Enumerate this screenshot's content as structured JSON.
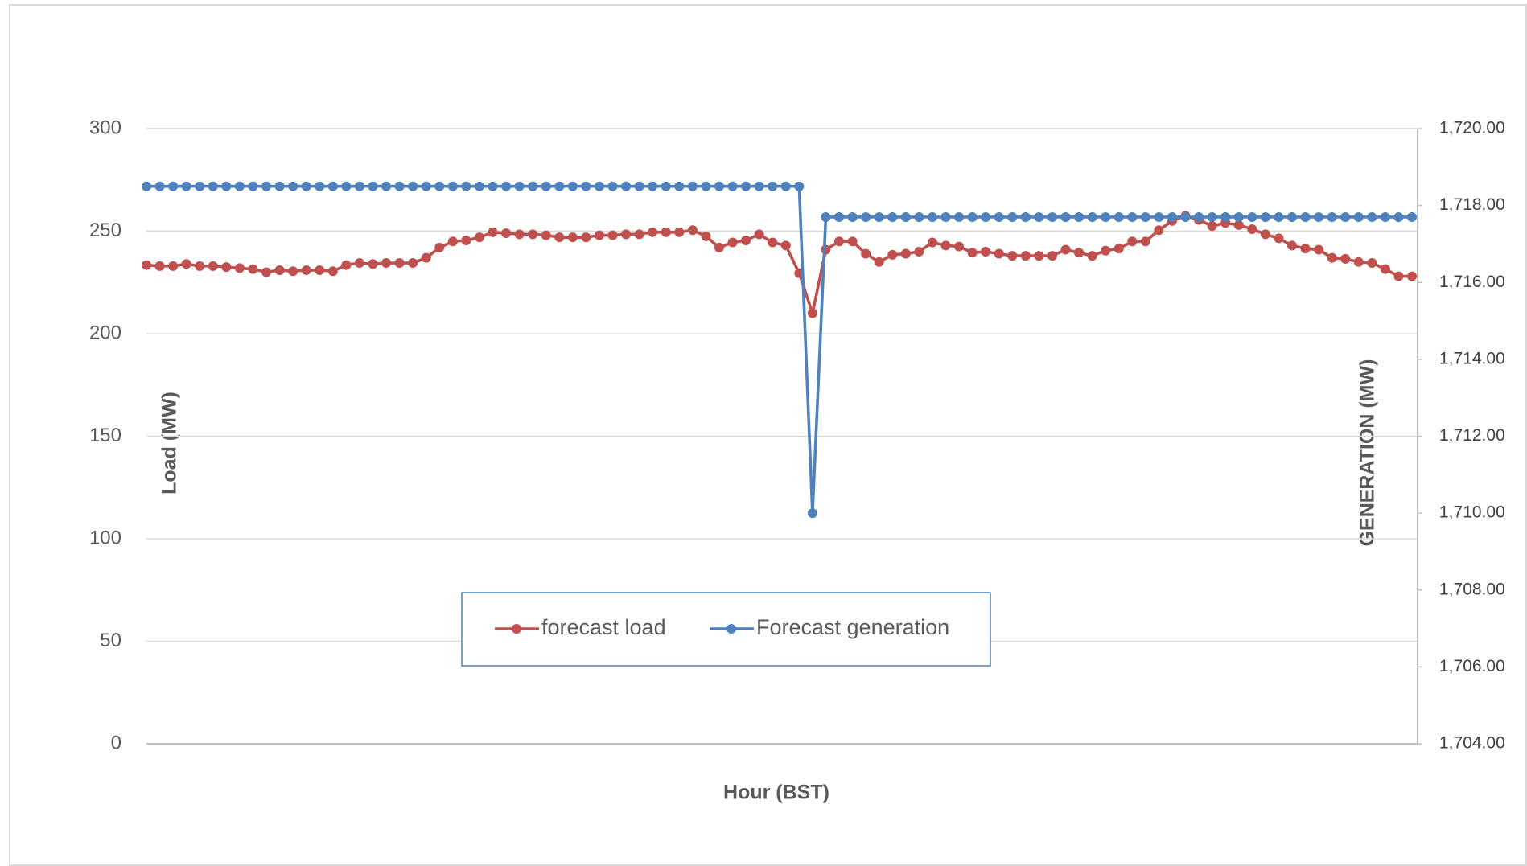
{
  "chart_data": {
    "type": "line",
    "x_label": "Hour (BST)",
    "y_label": "Load (MW)",
    "y2_label": "GENERATION (MW)",
    "categories": [
      null,
      null,
      null,
      null,
      null,
      null,
      null,
      null,
      null,
      null,
      null,
      null,
      null,
      null,
      null,
      null,
      null,
      null,
      null,
      null,
      null,
      null,
      null,
      null,
      null,
      null,
      null,
      null,
      null,
      null,
      null,
      null,
      null,
      null,
      null,
      null,
      null,
      null,
      null,
      null,
      null,
      null,
      null,
      null,
      null,
      null,
      null,
      null,
      null,
      null,
      null,
      null,
      null,
      null,
      null,
      null,
      null,
      null,
      null,
      null,
      null,
      null,
      null,
      null,
      null,
      null,
      null,
      null,
      null,
      null,
      null,
      null,
      null,
      null,
      null,
      null,
      null,
      null,
      null,
      null,
      null,
      null,
      null,
      null,
      null,
      null,
      null,
      null,
      null,
      null,
      null,
      null,
      null,
      null,
      null,
      null
    ],
    "series": [
      {
        "name": "forecast load",
        "color": "#c0504d",
        "axis": "y",
        "values": [
          233.5,
          233,
          233,
          234,
          233,
          233,
          232.5,
          232,
          231.5,
          230,
          231,
          230.5,
          231,
          231,
          230.5,
          233.5,
          234.5,
          234,
          234.5,
          234.5,
          234.5,
          237,
          242,
          245,
          245.5,
          247,
          249.5,
          249,
          248.5,
          248.5,
          248,
          247,
          247,
          247,
          248,
          248,
          248.5,
          248.5,
          249.5,
          249.5,
          249.5,
          250.5,
          247.5,
          242,
          244.5,
          245.5,
          248.5,
          244.5,
          243,
          229.5,
          210,
          241,
          245,
          245,
          239,
          235,
          238.5,
          239,
          240,
          244.5,
          243,
          242.5,
          239.5,
          240,
          239,
          238,
          238,
          238,
          238,
          241,
          239.5,
          238,
          240.5,
          241.5,
          245,
          245,
          250.5,
          255,
          257.5,
          255.5,
          252.5,
          254,
          253,
          251,
          248.5,
          246.5,
          243,
          241.5,
          241,
          237,
          236.5,
          235,
          234.5,
          231.5,
          228,
          228
        ]
      },
      {
        "name": "Forecast generation",
        "color": "#4f81bd",
        "axis": "y2",
        "values": [
          1718.5,
          1718.5,
          1718.5,
          1718.5,
          1718.5,
          1718.5,
          1718.5,
          1718.5,
          1718.5,
          1718.5,
          1718.5,
          1718.5,
          1718.5,
          1718.5,
          1718.5,
          1718.5,
          1718.5,
          1718.5,
          1718.5,
          1718.5,
          1718.5,
          1718.5,
          1718.5,
          1718.5,
          1718.5,
          1718.5,
          1718.5,
          1718.5,
          1718.5,
          1718.5,
          1718.5,
          1718.5,
          1718.5,
          1718.5,
          1718.5,
          1718.5,
          1718.5,
          1718.5,
          1718.5,
          1718.5,
          1718.5,
          1718.5,
          1718.5,
          1718.5,
          1718.5,
          1718.5,
          1718.5,
          1718.5,
          1718.5,
          1718.5,
          1710,
          1717.7,
          1717.7,
          1717.7,
          1717.7,
          1717.7,
          1717.7,
          1717.7,
          1717.7,
          1717.7,
          1717.7,
          1717.7,
          1717.7,
          1717.7,
          1717.7,
          1717.7,
          1717.7,
          1717.7,
          1717.7,
          1717.7,
          1717.7,
          1717.7,
          1717.7,
          1717.7,
          1717.7,
          1717.7,
          1717.7,
          1717.7,
          1717.7,
          1717.7,
          1717.7,
          1717.7,
          1717.7,
          1717.7,
          1717.7,
          1717.7,
          1717.7,
          1717.7,
          1717.7,
          1717.7,
          1717.7,
          1717.7,
          1717.7,
          1717.7,
          1717.7,
          1717.7
        ]
      }
    ],
    "ylim": [
      0,
      300
    ],
    "yticks": [
      0,
      50,
      100,
      150,
      200,
      250,
      300
    ],
    "y2lim": [
      1704,
      1720
    ],
    "y2ticks": [
      {
        "value": 1704,
        "label": "1,704.00"
      },
      {
        "value": 1706,
        "label": "1,706.00"
      },
      {
        "value": 1708,
        "label": "1,708.00"
      },
      {
        "value": 1710,
        "label": "1,710.00"
      },
      {
        "value": 1712,
        "label": "1,712.00"
      },
      {
        "value": 1714,
        "label": "1,714.00"
      },
      {
        "value": 1716,
        "label": "1,716.00"
      },
      {
        "value": 1718,
        "label": "1,718.00"
      },
      {
        "value": 1720,
        "label": "1,720.00"
      }
    ],
    "grid": true,
    "legend": "bottom"
  }
}
